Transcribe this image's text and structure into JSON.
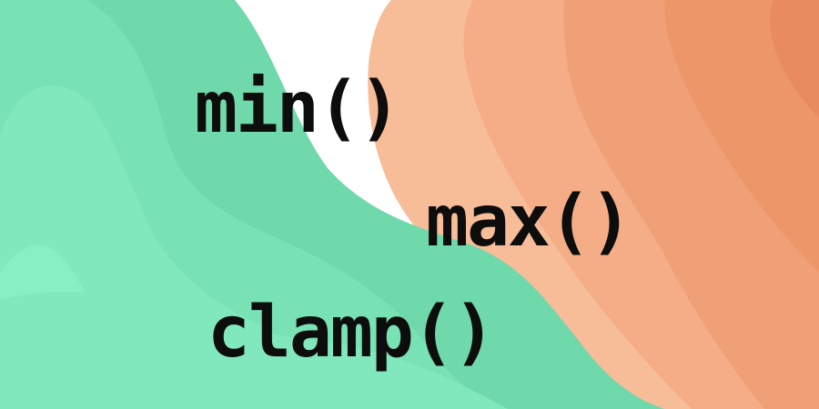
{
  "banner": {
    "functions": [
      "min()",
      "max()",
      "clamp()"
    ]
  },
  "colors": {
    "background": "#ffffff",
    "text": "#0d0d0d",
    "green_layers": [
      "#6fd9ab",
      "#78e2b4",
      "#80e8bc",
      "#88efc4",
      "#92f5cd"
    ],
    "orange_layers": [
      "#f7bc98",
      "#f4ad86",
      "#f0a077",
      "#ec966a",
      "#e88c5f"
    ]
  }
}
